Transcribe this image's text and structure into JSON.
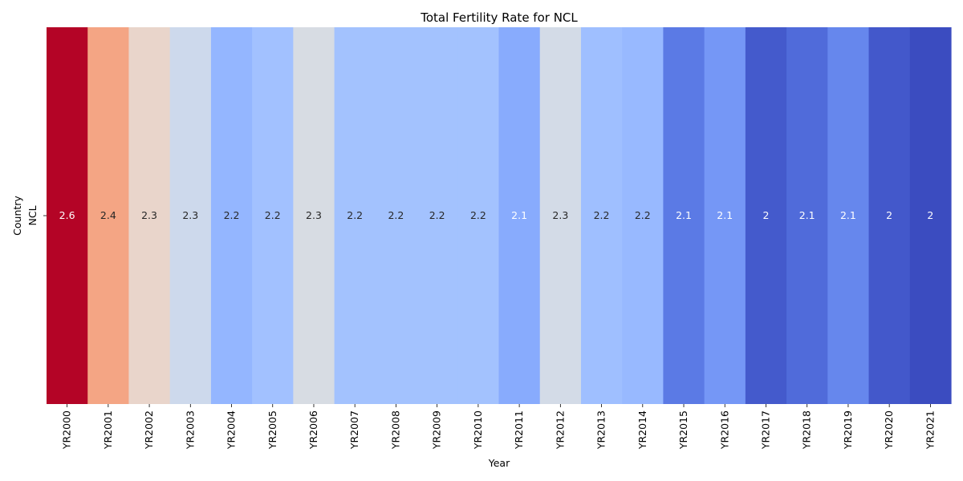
{
  "chart_data": {
    "type": "heatmap",
    "title": "Total Fertility Rate for NCL",
    "xlabel": "Year",
    "ylabel": "Country",
    "rows": [
      "NCL"
    ],
    "columns": [
      "YR2000",
      "YR2001",
      "YR2002",
      "YR2003",
      "YR2004",
      "YR2005",
      "YR2006",
      "YR2007",
      "YR2008",
      "YR2009",
      "YR2010",
      "YR2011",
      "YR2012",
      "YR2013",
      "YR2014",
      "YR2015",
      "YR2016",
      "YR2017",
      "YR2018",
      "YR2019",
      "YR2020",
      "YR2021"
    ],
    "annotations": [
      "2.6",
      "2.4",
      "2.3",
      "2.3",
      "2.2",
      "2.2",
      "2.3",
      "2.2",
      "2.2",
      "2.2",
      "2.2",
      "2.1",
      "2.3",
      "2.2",
      "2.2",
      "2.1",
      "2.1",
      "2",
      "2.1",
      "2.1",
      "2",
      "2"
    ],
    "values": [
      2.6,
      2.4,
      2.3,
      2.3,
      2.2,
      2.2,
      2.3,
      2.2,
      2.2,
      2.2,
      2.2,
      2.1,
      2.3,
      2.2,
      2.2,
      2.1,
      2.1,
      2.0,
      2.1,
      2.1,
      2.0,
      2.0
    ],
    "colors": [
      "#b40426",
      "#f4a584",
      "#e9d5cb",
      "#cdd9ec",
      "#94b6ff",
      "#a2c1ff",
      "#d7dce3",
      "#a3c2fe",
      "#a3c2fe",
      "#a3c2fe",
      "#a3c2fe",
      "#88abfd",
      "#d3dbe7",
      "#9fbfff",
      "#98b9ff",
      "#5b7ae5",
      "#7597f6",
      "#445acc",
      "#506bda",
      "#6687ed",
      "#4358cb",
      "#3b4cc0"
    ],
    "label_colors": [
      "#ffffff",
      "#262626",
      "#262626",
      "#262626",
      "#262626",
      "#262626",
      "#262626",
      "#262626",
      "#262626",
      "#262626",
      "#262626",
      "#ffffff",
      "#262626",
      "#262626",
      "#262626",
      "#ffffff",
      "#ffffff",
      "#ffffff",
      "#ffffff",
      "#ffffff",
      "#ffffff",
      "#ffffff"
    ],
    "colormap": "coolwarm",
    "legend": "none",
    "grid": false
  }
}
